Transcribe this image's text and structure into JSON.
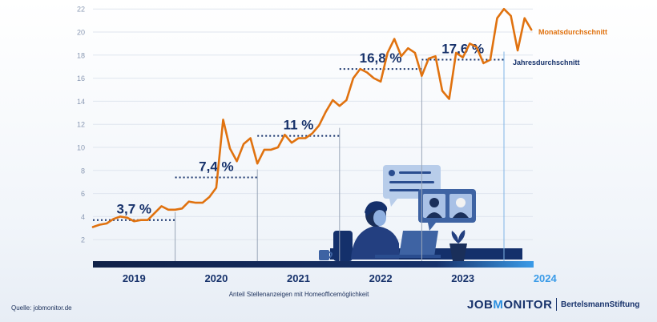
{
  "chart_data": {
    "type": "line",
    "xlabel": "Anteil Stellenanzeigen mit Homeofficemöglichkeit",
    "ylim": [
      0,
      22
    ],
    "yticks": [
      2,
      4,
      6,
      8,
      10,
      12,
      14,
      16,
      18,
      20,
      22
    ],
    "years": [
      "2019",
      "2020",
      "2021",
      "2022",
      "2023",
      "2024"
    ],
    "series": [
      {
        "name": "Monatsdurchschnitt",
        "color": "#e0720f",
        "values": [
          3.1,
          3.3,
          3.4,
          3.8,
          4.0,
          3.9,
          3.6,
          3.7,
          3.7,
          4.3,
          4.9,
          4.6,
          4.6,
          4.7,
          5.3,
          5.2,
          5.2,
          5.7,
          6.5,
          12.4,
          9.9,
          8.8,
          10.3,
          10.8,
          8.6,
          9.8,
          9.8,
          10.0,
          11.1,
          10.4,
          10.8,
          10.8,
          11.2,
          11.9,
          13.1,
          14.1,
          13.6,
          14.1,
          16.0,
          16.8,
          16.5,
          16.0,
          15.7,
          18.2,
          19.4,
          17.9,
          18.6,
          18.2,
          16.2,
          17.7,
          17.9,
          14.9,
          14.2,
          18.2,
          17.8,
          19.0,
          18.7,
          17.3,
          17.6,
          21.2,
          22.0,
          21.4,
          18.4,
          21.2,
          20.2
        ]
      },
      {
        "name": "Jahresdurchschnitt",
        "color": "#17326b",
        "values": [
          3.7,
          7.4,
          11,
          16.8,
          17.6
        ],
        "labels": [
          "3,7 %",
          "7,4 %",
          "11 %",
          "16,8 %",
          "17,6 %"
        ]
      }
    ]
  },
  "source": "Quelle: jobmonitor.de",
  "logo": {
    "job": "JOB",
    "monitor": "MONITOR",
    "bertelsmann": "BertelsmannStiftung"
  }
}
